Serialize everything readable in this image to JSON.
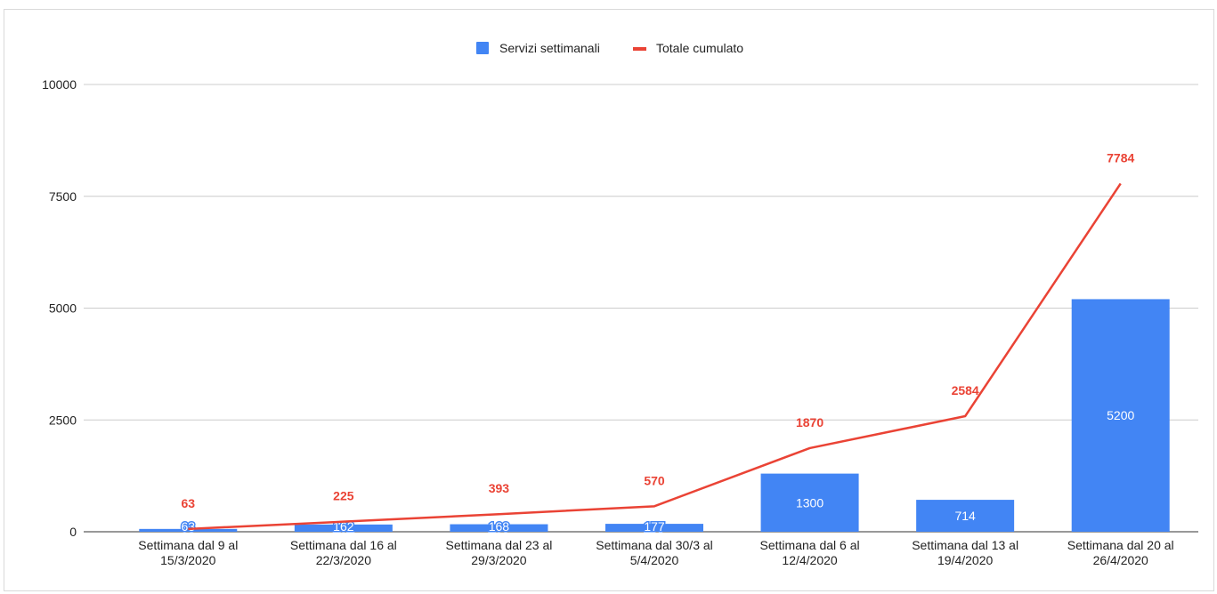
{
  "chart_data": {
    "type": "bar",
    "categories": [
      [
        "Settimana dal 9 al",
        "15/3/2020"
      ],
      [
        "Settimana dal 16 al",
        "22/3/2020"
      ],
      [
        "Settimana dal 23 al",
        "29/3/2020"
      ],
      [
        "Settimana dal 30/3 al",
        "5/4/2020"
      ],
      [
        "Settimana dal 6 al",
        "12/4/2020"
      ],
      [
        "Settimana dal 13 al",
        "19/4/2020"
      ],
      [
        "Settimana dal 20 al",
        "26/4/2020"
      ]
    ],
    "series": [
      {
        "name": "Servizi settimanali",
        "type": "bar",
        "color": "#4285f4",
        "label_color": "#ffffff",
        "values": [
          63,
          162,
          168,
          177,
          1300,
          714,
          5200
        ]
      },
      {
        "name": "Totale cumulato",
        "type": "line",
        "color": "#ea4335",
        "label_color": "#ea4335",
        "values": [
          63,
          225,
          393,
          570,
          1870,
          2584,
          7784
        ]
      }
    ],
    "ylim": [
      0,
      10000
    ],
    "yticks": [
      0,
      2500,
      5000,
      7500,
      10000
    ],
    "grid": true,
    "legend_position": "top-center",
    "title": "",
    "xlabel": "",
    "ylabel": ""
  }
}
